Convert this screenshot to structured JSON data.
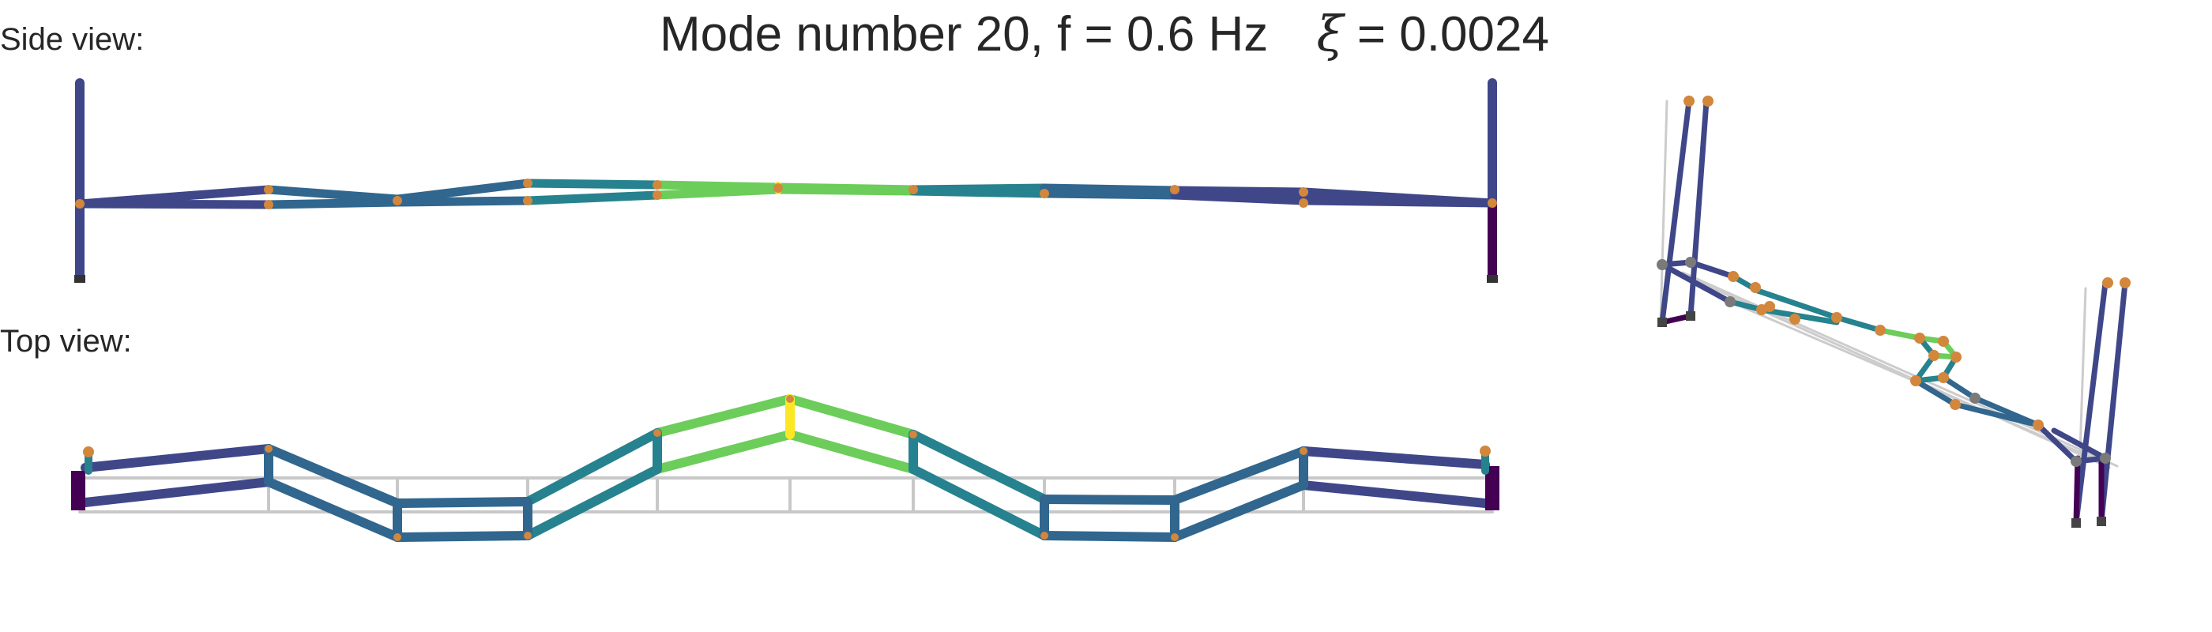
{
  "title": {
    "prefix": "Mode number 20, f = 0.6 Hz",
    "symbol": "ξ",
    "suffix": " = 0.0024"
  },
  "labels": {
    "side_view": "Side view:",
    "top_view": "Top view:"
  },
  "mode": {
    "number": 20,
    "frequency_hz": 0.6,
    "damping_ratio": 0.0024
  },
  "colors": {
    "pier": "#3f4789",
    "pier_base": "#440154",
    "deck_blue": "#31668e",
    "deck_teal": "#26828e",
    "deck_green": "#6ccd5a",
    "peak_yellow": "#fde725",
    "node_orange": "#d2873c",
    "node_grey": "#7a7a7a",
    "reference_grey": "#c8c8c8"
  }
}
